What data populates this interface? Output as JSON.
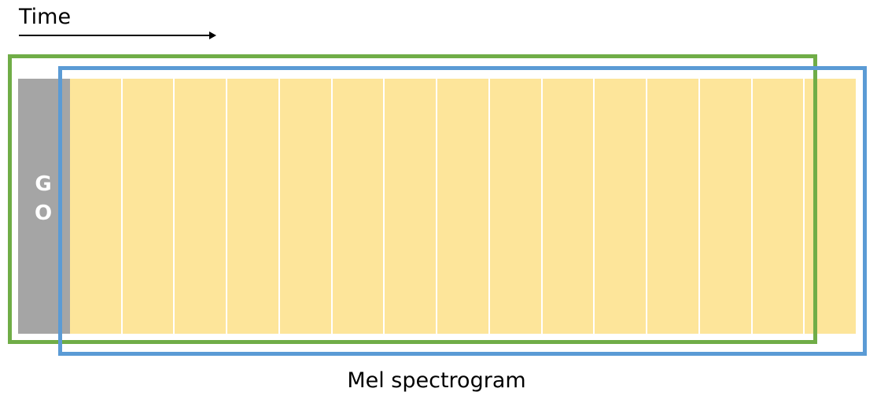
{
  "time_label": "Time",
  "go_block": {
    "letters": [
      "G",
      "O"
    ],
    "color": "#a5a5a5",
    "text_color": "#ffffff"
  },
  "frames": {
    "count": 15,
    "color": "#fde59a"
  },
  "boxes": {
    "green_color": "#70ad47",
    "blue_color": "#5b9bd5"
  },
  "caption": "Mel spectrogram"
}
